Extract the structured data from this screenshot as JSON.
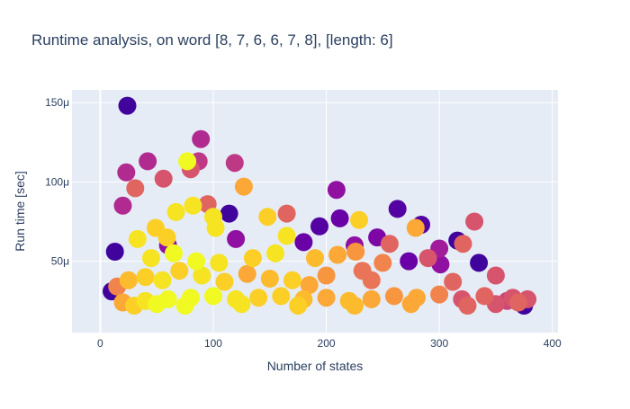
{
  "chart_data": {
    "type": "scatter",
    "title": "Runtime analysis, on word [8, 7, 6, 6, 7, 8], [length: 6]",
    "xlabel": "Number of states",
    "ylabel": "Run time [sec]",
    "xlim": [
      -25,
      405
    ],
    "ylim": [
      5e-06,
      0.000158
    ],
    "x_ticks": [
      0,
      100,
      200,
      300,
      400
    ],
    "x_tick_labels": [
      "0",
      "100",
      "200",
      "300",
      "400"
    ],
    "y_ticks": [
      5e-05,
      0.0001,
      0.00015
    ],
    "y_tick_labels": [
      "50μ",
      "100μ",
      "150μ"
    ],
    "grid": true,
    "legend": "none",
    "marker_colorscale": [
      "#0d0887",
      "#46039f",
      "#7201a8",
      "#9c179e",
      "#bd3786",
      "#d8576b",
      "#ed7953",
      "#fb9f3a",
      "#fdca26",
      "#f0f921"
    ],
    "background_color": "#e5ecf6",
    "points": [
      [
        24,
        0.000148,
        0.1
      ],
      [
        89,
        0.000127,
        0.4
      ],
      [
        119,
        0.000112,
        0.45
      ],
      [
        87,
        0.000113,
        0.45
      ],
      [
        42,
        0.000113,
        0.4
      ],
      [
        77,
        0.000113,
        1.0
      ],
      [
        23,
        0.000106,
        0.4
      ],
      [
        209,
        9.5e-05,
        0.3
      ],
      [
        31,
        9.6e-05,
        0.6
      ],
      [
        127,
        9.7e-05,
        0.8
      ],
      [
        56,
        0.000102,
        0.55
      ],
      [
        80,
        0.000108,
        0.55
      ],
      [
        20,
        8.5e-05,
        0.4
      ],
      [
        95,
        8.6e-05,
        0.6
      ],
      [
        165,
        8e-05,
        0.6
      ],
      [
        263,
        8.3e-05,
        0.15
      ],
      [
        114,
        8e-05,
        0.1
      ],
      [
        229,
        7.6e-05,
        0.9
      ],
      [
        279,
        7.1e-05,
        0.8
      ],
      [
        284,
        7.3e-05,
        0.15
      ],
      [
        331,
        7.5e-05,
        0.55
      ],
      [
        194,
        7.2e-05,
        0.15
      ],
      [
        212,
        7.7e-05,
        0.2
      ],
      [
        67,
        8.1e-05,
        0.95
      ],
      [
        82,
        8.5e-05,
        0.95
      ],
      [
        100,
        7.8e-05,
        0.95
      ],
      [
        148,
        7.8e-05,
        0.9
      ],
      [
        165,
        6.6e-05,
        0.95
      ],
      [
        49,
        7.1e-05,
        0.9
      ],
      [
        59,
        6.5e-05,
        0.9
      ],
      [
        102,
        7.1e-05,
        0.95
      ],
      [
        33,
        6.4e-05,
        0.95
      ],
      [
        316,
        6.3e-05,
        0.1
      ],
      [
        321,
        6.1e-05,
        0.6
      ],
      [
        225,
        6e-05,
        0.3
      ],
      [
        256,
        6.1e-05,
        0.6
      ],
      [
        226,
        5.6e-05,
        0.75
      ],
      [
        13,
        5.6e-05,
        0.1
      ],
      [
        335,
        4.9e-05,
        0.1
      ],
      [
        273,
        5e-05,
        0.2
      ],
      [
        232,
        4.4e-05,
        0.65
      ],
      [
        301,
        4.8e-05,
        0.3
      ],
      [
        350,
        4.1e-05,
        0.55
      ],
      [
        312,
        3.7e-05,
        0.6
      ],
      [
        240,
        3.8e-05,
        0.65
      ],
      [
        200,
        4.1e-05,
        0.75
      ],
      [
        185,
        3.5e-05,
        0.8
      ],
      [
        170,
        3.8e-05,
        0.9
      ],
      [
        150,
        3.9e-05,
        0.85
      ],
      [
        130,
        4.2e-05,
        0.8
      ],
      [
        110,
        3.7e-05,
        0.9
      ],
      [
        90,
        4.1e-05,
        0.95
      ],
      [
        70,
        4.4e-05,
        0.9
      ],
      [
        55,
        3.8e-05,
        0.95
      ],
      [
        40,
        4e-05,
        0.9
      ],
      [
        25,
        3.8e-05,
        0.85
      ],
      [
        15,
        3.4e-05,
        0.7
      ],
      [
        365,
        2.7e-05,
        0.55
      ],
      [
        370,
        2.4e-05,
        0.6
      ],
      [
        375,
        2.2e-05,
        0.1
      ],
      [
        360,
        2.5e-05,
        0.5
      ],
      [
        340,
        2.8e-05,
        0.6
      ],
      [
        320,
        2.6e-05,
        0.55
      ],
      [
        300,
        2.9e-05,
        0.7
      ],
      [
        280,
        2.7e-05,
        0.8
      ],
      [
        260,
        2.8e-05,
        0.75
      ],
      [
        240,
        2.6e-05,
        0.8
      ],
      [
        220,
        2.5e-05,
        0.85
      ],
      [
        200,
        2.7e-05,
        0.8
      ],
      [
        180,
        2.6e-05,
        0.85
      ],
      [
        160,
        2.8e-05,
        0.9
      ],
      [
        140,
        2.7e-05,
        0.9
      ],
      [
        120,
        2.6e-05,
        0.95
      ],
      [
        100,
        2.8e-05,
        1.0
      ],
      [
        80,
        2.7e-05,
        1.0
      ],
      [
        60,
        2.6e-05,
        1.0
      ],
      [
        40,
        2.5e-05,
        0.95
      ],
      [
        20,
        2.4e-05,
        0.8
      ],
      [
        10,
        3.1e-05,
        0.1
      ],
      [
        30,
        2.2e-05,
        0.9
      ],
      [
        50,
        2.3e-05,
        1.0
      ],
      [
        75,
        2.2e-05,
        1.0
      ],
      [
        125,
        2.3e-05,
        0.95
      ],
      [
        175,
        2.2e-05,
        0.9
      ],
      [
        225,
        2.2e-05,
        0.85
      ],
      [
        275,
        2.3e-05,
        0.8
      ],
      [
        325,
        2.2e-05,
        0.6
      ],
      [
        350,
        2.3e-05,
        0.55
      ],
      [
        378,
        2.6e-05,
        0.55
      ],
      [
        45,
        5.2e-05,
        0.95
      ],
      [
        65,
        5.5e-05,
        1.0
      ],
      [
        85,
        5e-05,
        1.0
      ],
      [
        105,
        4.9e-05,
        0.95
      ],
      [
        135,
        5.2e-05,
        0.9
      ],
      [
        155,
        5.5e-05,
        0.95
      ],
      [
        190,
        5.2e-05,
        0.85
      ],
      [
        210,
        5.4e-05,
        0.8
      ],
      [
        250,
        4.9e-05,
        0.7
      ],
      [
        290,
        5.2e-05,
        0.55
      ],
      [
        60,
        6e-05,
        0.3
      ],
      [
        120,
        6.4e-05,
        0.3
      ],
      [
        180,
        6.2e-05,
        0.2
      ],
      [
        245,
        6.5e-05,
        0.25
      ],
      [
        300,
        5.8e-05,
        0.35
      ]
    ]
  }
}
